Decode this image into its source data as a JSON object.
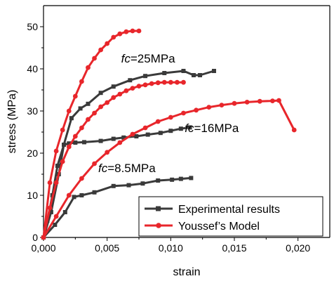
{
  "chart_data": {
    "type": "line",
    "xlabel": "strain",
    "ylabel": "stress (MPa)",
    "xlim": [
      0,
      0.0225
    ],
    "ylim": [
      0,
      55
    ],
    "x_ticks": [
      "0,000",
      "0,005",
      "0,010",
      "0,015",
      "0,020"
    ],
    "x_tick_values": [
      0,
      0.005,
      0.01,
      0.015,
      0.02
    ],
    "y_ticks": [
      "0",
      "10",
      "20",
      "30",
      "40",
      "50"
    ],
    "y_tick_values": [
      0,
      10,
      20,
      30,
      40,
      50
    ],
    "grid": false,
    "legend_position": "bottom-right",
    "legend": [
      "Experimental results",
      "Youssef’s Model"
    ],
    "annotations": [
      {
        "prefix": "fc",
        "suffix": "=25MPa",
        "x": 0.0061,
        "y": 41.5
      },
      {
        "prefix": "fc",
        "suffix": "=16MPa",
        "x": 0.0111,
        "y": 25.0
      },
      {
        "prefix": "fc",
        "suffix": "=8.5MPa",
        "x": 0.0043,
        "y": 15.5
      }
    ],
    "colors": {
      "experimental": "#3a3a3a",
      "model": "#e8262b"
    },
    "series": [
      {
        "name": "Experimental results",
        "group": "fc=25MPa",
        "points": [
          [
            0,
            0
          ],
          [
            0.0006,
            6
          ],
          [
            0.0012,
            15
          ],
          [
            0.0016,
            22
          ],
          [
            0.0022,
            28.3
          ],
          [
            0.0029,
            30.6
          ],
          [
            0.0035,
            31.7
          ],
          [
            0.0045,
            34.3
          ],
          [
            0.0055,
            35.8
          ],
          [
            0.0068,
            37.3
          ],
          [
            0.008,
            38.3
          ],
          [
            0.0095,
            39
          ],
          [
            0.011,
            39.5
          ],
          [
            0.0118,
            38.5
          ],
          [
            0.0123,
            38.5
          ],
          [
            0.0134,
            39.5
          ]
        ]
      },
      {
        "name": "Experimental results",
        "group": "fc=16MPa",
        "points": [
          [
            0,
            0
          ],
          [
            0.0003,
            4
          ],
          [
            0.0007,
            10
          ],
          [
            0.0011,
            17
          ],
          [
            0.0016,
            22
          ],
          [
            0.002,
            22.3
          ],
          [
            0.0025,
            22.5
          ],
          [
            0.0032,
            22.6
          ],
          [
            0.0045,
            22.9
          ],
          [
            0.0055,
            23.4
          ],
          [
            0.0063,
            23.7
          ],
          [
            0.0073,
            24
          ],
          [
            0.0082,
            24.4
          ],
          [
            0.0092,
            24.8
          ],
          [
            0.01,
            25.3
          ],
          [
            0.0108,
            25.8
          ],
          [
            0.0115,
            26.1
          ]
        ]
      },
      {
        "name": "Experimental results",
        "group": "fc=8.5MPa",
        "points": [
          [
            0,
            0
          ],
          [
            0.0009,
            3
          ],
          [
            0.0017,
            6
          ],
          [
            0.0024,
            9.6
          ],
          [
            0.003,
            10
          ],
          [
            0.004,
            10.7
          ],
          [
            0.0055,
            12.2
          ],
          [
            0.0067,
            12.4
          ],
          [
            0.0078,
            12.8
          ],
          [
            0.009,
            13.5
          ],
          [
            0.0101,
            13.7
          ],
          [
            0.0108,
            13.9
          ],
          [
            0.0116,
            14.1
          ]
        ]
      },
      {
        "name": "Youssef’s Model",
        "group": "fc=25MPa",
        "points": [
          [
            0,
            0
          ],
          [
            0.0005,
            13
          ],
          [
            0.001,
            20.5
          ],
          [
            0.0015,
            25.5
          ],
          [
            0.002,
            30
          ],
          [
            0.0025,
            33.5
          ],
          [
            0.003,
            37
          ],
          [
            0.0035,
            40.3
          ],
          [
            0.004,
            42.5
          ],
          [
            0.0045,
            44.5
          ],
          [
            0.005,
            46
          ],
          [
            0.0055,
            47.5
          ],
          [
            0.006,
            48.3
          ],
          [
            0.0065,
            48.8
          ],
          [
            0.007,
            49
          ],
          [
            0.0075,
            49
          ]
        ]
      },
      {
        "name": "Youssef’s Model",
        "group": "fc=16MPa",
        "points": [
          [
            0,
            0
          ],
          [
            0.0005,
            7
          ],
          [
            0.001,
            13
          ],
          [
            0.0015,
            18
          ],
          [
            0.002,
            21.5
          ],
          [
            0.0025,
            24
          ],
          [
            0.003,
            26
          ],
          [
            0.0035,
            28
          ],
          [
            0.004,
            29.5
          ],
          [
            0.0045,
            31
          ],
          [
            0.005,
            32
          ],
          [
            0.0055,
            33.2
          ],
          [
            0.006,
            34
          ],
          [
            0.0065,
            34.8
          ],
          [
            0.007,
            35.4
          ],
          [
            0.0075,
            35.9
          ],
          [
            0.008,
            36.2
          ],
          [
            0.0085,
            36.5
          ],
          [
            0.009,
            36.7
          ],
          [
            0.0095,
            36.8
          ],
          [
            0.01,
            36.8
          ],
          [
            0.0105,
            36.8
          ],
          [
            0.011,
            36.8
          ]
        ]
      },
      {
        "name": "Youssef’s Model",
        "group": "fc=8.5MPa",
        "points": [
          [
            0,
            0
          ],
          [
            0.001,
            5
          ],
          [
            0.002,
            10
          ],
          [
            0.003,
            14
          ],
          [
            0.004,
            17.5
          ],
          [
            0.005,
            20.2
          ],
          [
            0.006,
            22.5
          ],
          [
            0.007,
            24.5
          ],
          [
            0.008,
            26
          ],
          [
            0.009,
            27.5
          ],
          [
            0.01,
            28.5
          ],
          [
            0.011,
            29.5
          ],
          [
            0.012,
            30.2
          ],
          [
            0.013,
            30.9
          ],
          [
            0.014,
            31.4
          ],
          [
            0.015,
            31.8
          ],
          [
            0.016,
            32.1
          ],
          [
            0.017,
            32.3
          ],
          [
            0.018,
            32.4
          ],
          [
            0.0185,
            32.5
          ],
          [
            0.0197,
            25.5
          ]
        ]
      }
    ]
  }
}
